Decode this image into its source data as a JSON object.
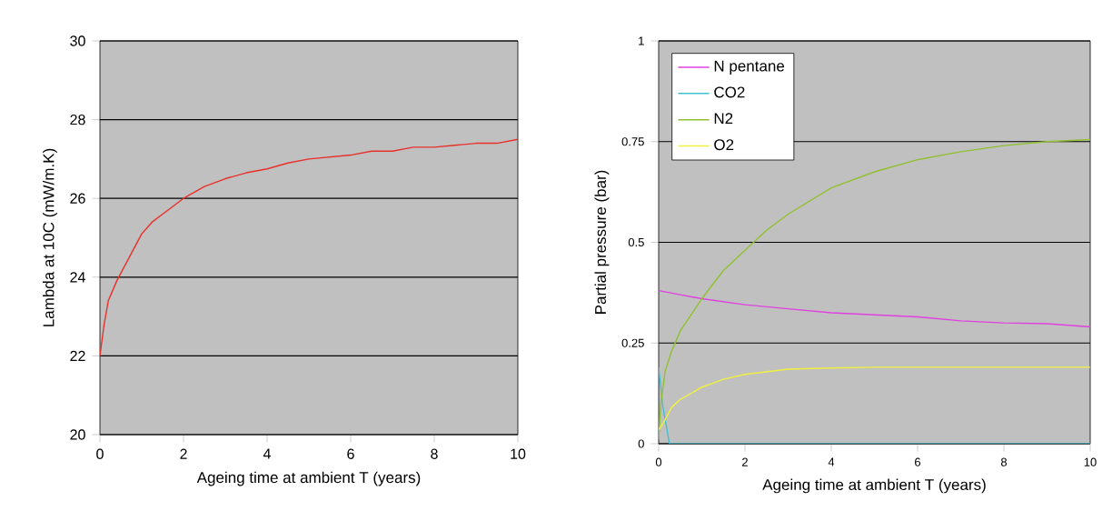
{
  "chart_data": [
    {
      "type": "line",
      "xlabel": "Ageing time at ambient T (years)",
      "ylabel": "Lambda at 10C (mW/m.K)",
      "xlim": [
        0,
        10
      ],
      "ylim": [
        20,
        30
      ],
      "xticks": [
        0,
        2,
        4,
        6,
        8,
        10
      ],
      "yticks": [
        20,
        22,
        24,
        26,
        28,
        30
      ],
      "grid": "y",
      "legend": false,
      "marker": "none",
      "line_style": "solid",
      "series": [
        {
          "color": "#e8302a",
          "x": [
            0,
            0.1,
            0.2,
            0.4,
            0.7,
            1,
            1.25,
            1.5,
            2,
            2.5,
            3,
            3.5,
            4,
            4.5,
            5,
            5.5,
            6,
            6.5,
            7,
            7.5,
            8,
            8.5,
            9,
            9.5,
            10
          ],
          "values": [
            22,
            22.8,
            23.4,
            23.9,
            24.5,
            25.1,
            25.4,
            25.6,
            26,
            26.3,
            26.5,
            26.65,
            26.75,
            26.9,
            27,
            27.05,
            27.1,
            27.2,
            27.2,
            27.3,
            27.3,
            27.35,
            27.4,
            27.4,
            27.5
          ]
        }
      ]
    },
    {
      "type": "line",
      "xlabel": "Ageing time at ambient T (years)",
      "ylabel": "Partial pressure (bar)",
      "xlim": [
        0,
        10
      ],
      "ylim": [
        0,
        1
      ],
      "xticks": [
        0,
        2,
        4,
        6,
        8,
        10
      ],
      "yticks": [
        0,
        0.25,
        0.5,
        0.75,
        1
      ],
      "grid": "y",
      "legend": "top left",
      "marker": "none",
      "line_style": "solid",
      "series": [
        {
          "name": "N pentane",
          "color": "#e040e0",
          "x": [
            0,
            0.5,
            1,
            2,
            3,
            4,
            5,
            6,
            7,
            8,
            9,
            10
          ],
          "values": [
            0.38,
            0.37,
            0.36,
            0.345,
            0.335,
            0.325,
            0.32,
            0.315,
            0.305,
            0.3,
            0.298,
            0.29
          ]
        },
        {
          "name": "CO2",
          "color": "#40c0d0",
          "x": [
            0,
            0.1,
            0.2,
            0.25,
            10
          ],
          "values": [
            0.19,
            0.09,
            0.03,
            0,
            0
          ]
        },
        {
          "name": "N2",
          "color": "#90c030",
          "x": [
            0,
            0.05,
            0.15,
            0.3,
            0.5,
            1,
            1.5,
            2,
            2.5,
            3,
            4,
            5,
            6,
            7,
            8,
            9,
            10
          ],
          "values": [
            0.01,
            0.1,
            0.18,
            0.23,
            0.28,
            0.36,
            0.43,
            0.48,
            0.53,
            0.57,
            0.635,
            0.675,
            0.705,
            0.725,
            0.74,
            0.75,
            0.755
          ]
        },
        {
          "name": "O2",
          "color": "#f0f040",
          "x": [
            0,
            0.1,
            0.3,
            0.5,
            1,
            1.5,
            2,
            3,
            4,
            5,
            7,
            10
          ],
          "values": [
            0.035,
            0.05,
            0.09,
            0.11,
            0.14,
            0.16,
            0.172,
            0.185,
            0.188,
            0.19,
            0.19,
            0.19
          ]
        }
      ]
    }
  ]
}
